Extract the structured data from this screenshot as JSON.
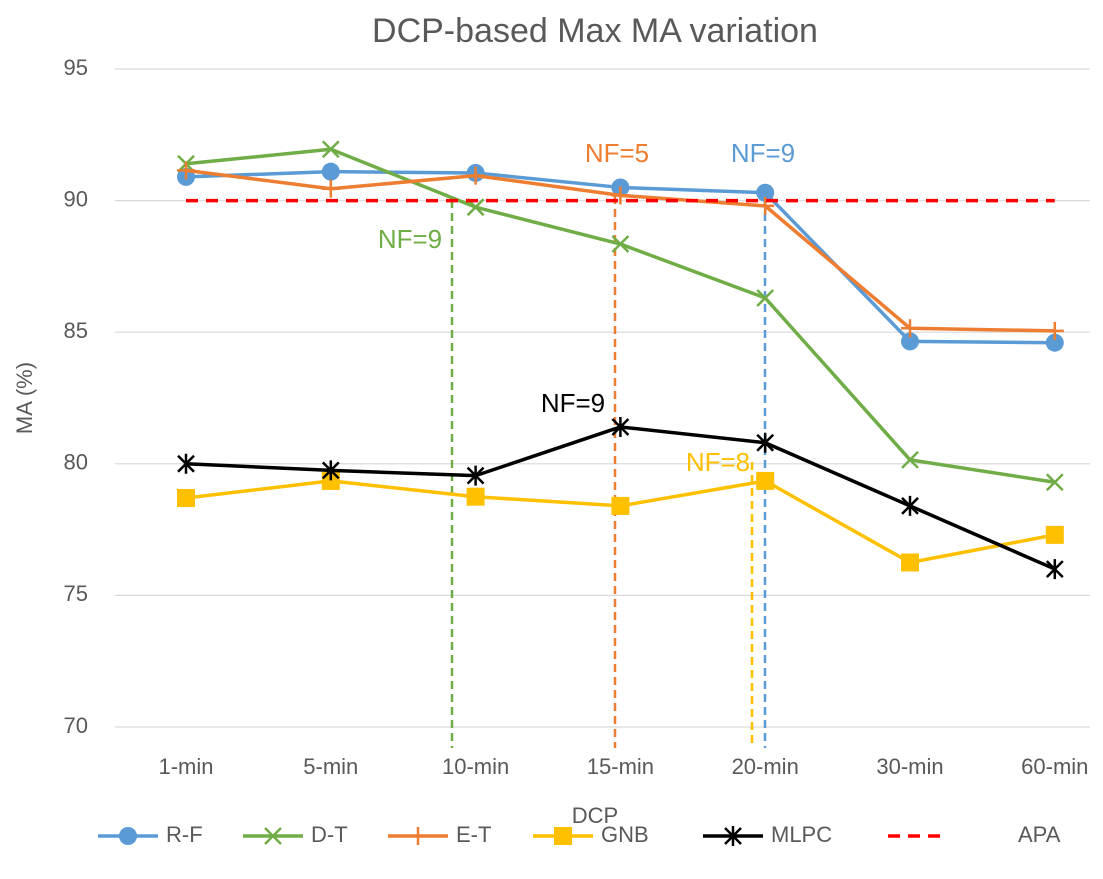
{
  "chart_data": {
    "type": "line",
    "title": "DCP-based Max MA variation",
    "x_label": "DCP",
    "y_label": "MA (%)",
    "categories": [
      "1-min",
      "5-min",
      "10-min",
      "15-min",
      "20-min",
      "30-min",
      "60-min"
    ],
    "ylim": [
      70,
      95
    ],
    "yticks": [
      70,
      75,
      80,
      85,
      90,
      95
    ],
    "grid": true,
    "legend": "bottom",
    "series": [
      {
        "name": "R-F",
        "color": "#5b9bd5",
        "marker": "circle",
        "values": [
          90.9,
          91.1,
          91.05,
          90.5,
          90.3,
          84.65,
          84.6
        ]
      },
      {
        "name": "D-T",
        "color": "#70ad47",
        "marker": "x",
        "values": [
          91.4,
          91.95,
          89.75,
          88.35,
          86.3,
          80.15,
          79.3
        ]
      },
      {
        "name": "E-T",
        "color": "#ed7d31",
        "marker": "plus",
        "values": [
          91.15,
          90.45,
          90.95,
          90.2,
          89.8,
          85.15,
          85.05
        ]
      },
      {
        "name": "GNB",
        "color": "#ffc000",
        "marker": "square",
        "values": [
          78.7,
          79.35,
          78.75,
          78.4,
          79.35,
          76.25,
          77.3
        ]
      },
      {
        "name": "MLPC",
        "color": "#000000",
        "marker": "star",
        "values": [
          80,
          79.75,
          79.55,
          81.4,
          80.8,
          78.4,
          76
        ]
      },
      {
        "name": "APA",
        "color": "#ff0000",
        "marker": "none",
        "dashed": true,
        "values": [
          90,
          90,
          90,
          90,
          90,
          90,
          90
        ]
      }
    ],
    "annotations": [
      {
        "text": "NF=9",
        "color": "#70ad47"
      },
      {
        "text": "NF=5",
        "color": "#ed7d31"
      },
      {
        "text": "NF=9",
        "color": "#5b9bd5"
      },
      {
        "text": "NF=9",
        "color": "#000000"
      },
      {
        "text": "NF=8",
        "color": "#ffc000"
      }
    ]
  }
}
